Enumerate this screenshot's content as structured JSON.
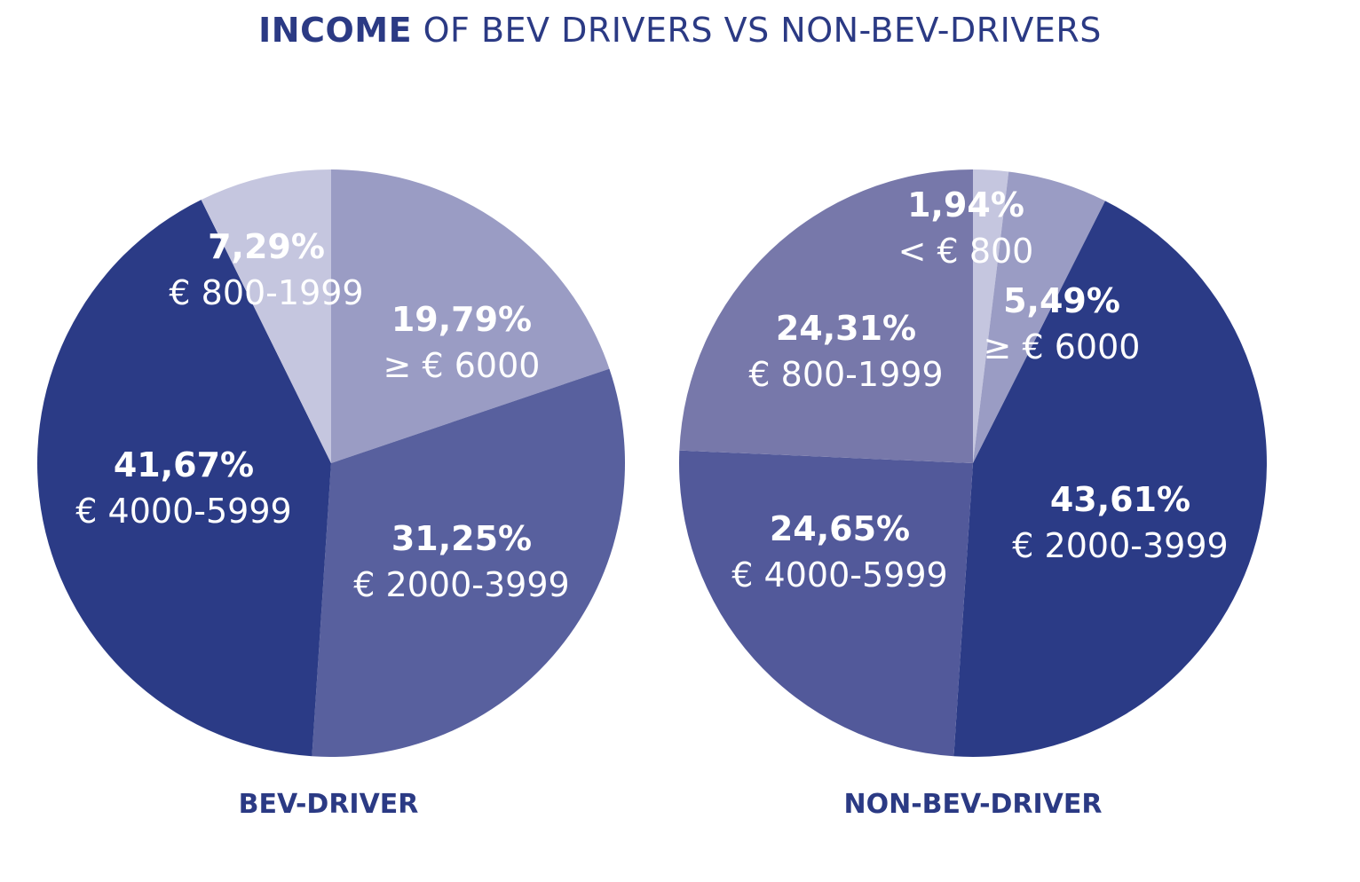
{
  "title": {
    "bold": "INCOME",
    "rest": " OF BEV DRIVERS VS NON-BEV-DRIVERS"
  },
  "chart_data": [
    {
      "type": "pie",
      "caption": "BEV-DRIVER",
      "slices": [
        {
          "label": "≥ € 6000",
          "value": 19.79,
          "value_text": "19,79%",
          "color": "#9a9cc4"
        },
        {
          "label": "€ 2000-3999",
          "value": 31.25,
          "value_text": "31,25%",
          "color": "#58609e"
        },
        {
          "label": "€ 4000-5999",
          "value": 41.67,
          "value_text": "41,67%",
          "color": "#2b3b86"
        },
        {
          "label": "€ 800-1999",
          "value": 7.29,
          "value_text": "7,29%",
          "color": "#c5c6df"
        }
      ]
    },
    {
      "type": "pie",
      "caption": "NON-BEV-DRIVER",
      "slices": [
        {
          "label": "< € 800",
          "value": 1.94,
          "value_text": "1,94%",
          "color": "#c5c6df"
        },
        {
          "label": "≥ € 6000",
          "value": 5.49,
          "value_text": "5,49%",
          "color": "#9a9cc4"
        },
        {
          "label": "€ 2000-3999",
          "value": 43.61,
          "value_text": "43,61%",
          "color": "#2b3b86"
        },
        {
          "label": "€ 4000-5999",
          "value": 24.65,
          "value_text": "24,65%",
          "color": "#52599a"
        },
        {
          "label": "€ 800-1999",
          "value": 24.31,
          "value_text": "24,31%",
          "color": "#7778aa"
        }
      ]
    }
  ]
}
